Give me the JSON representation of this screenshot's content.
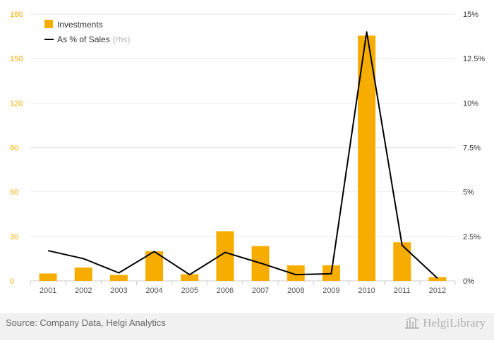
{
  "chart_data": {
    "type": "bar",
    "categories": [
      "2001",
      "2002",
      "2003",
      "2004",
      "2005",
      "2006",
      "2007",
      "2008",
      "2009",
      "2010",
      "2011",
      "2012"
    ],
    "series": [
      {
        "name": "Investments",
        "kind": "bar",
        "axis": "left",
        "color": "#f7ad00",
        "values": [
          5,
          9,
          4,
          20,
          4.5,
          33.5,
          23.5,
          10.5,
          10.5,
          165.5,
          26,
          2.5
        ]
      },
      {
        "name": "As % of Sales",
        "name_suffix": "(rhs)",
        "kind": "line",
        "axis": "right",
        "color": "#000000",
        "values": [
          1.7,
          1.25,
          0.45,
          1.65,
          0.35,
          1.6,
          1.0,
          0.35,
          0.4,
          14.0,
          2.0,
          0.15
        ]
      }
    ],
    "yleft": {
      "lim": [
        0,
        180
      ],
      "ticks": [
        "0",
        "30",
        "60",
        "90",
        "120",
        "150",
        "180"
      ],
      "color": "#f7ad00"
    },
    "yright": {
      "lim": [
        0,
        15
      ],
      "ticks": [
        "0%",
        "2.5%",
        "5%",
        "7.5%",
        "10%",
        "12.5%",
        "15%"
      ]
    },
    "grid": true,
    "legend": "top-left"
  },
  "footer": {
    "source": "Source: Company Data, Helgi Analytics",
    "brand": "HelgiLibrary"
  }
}
